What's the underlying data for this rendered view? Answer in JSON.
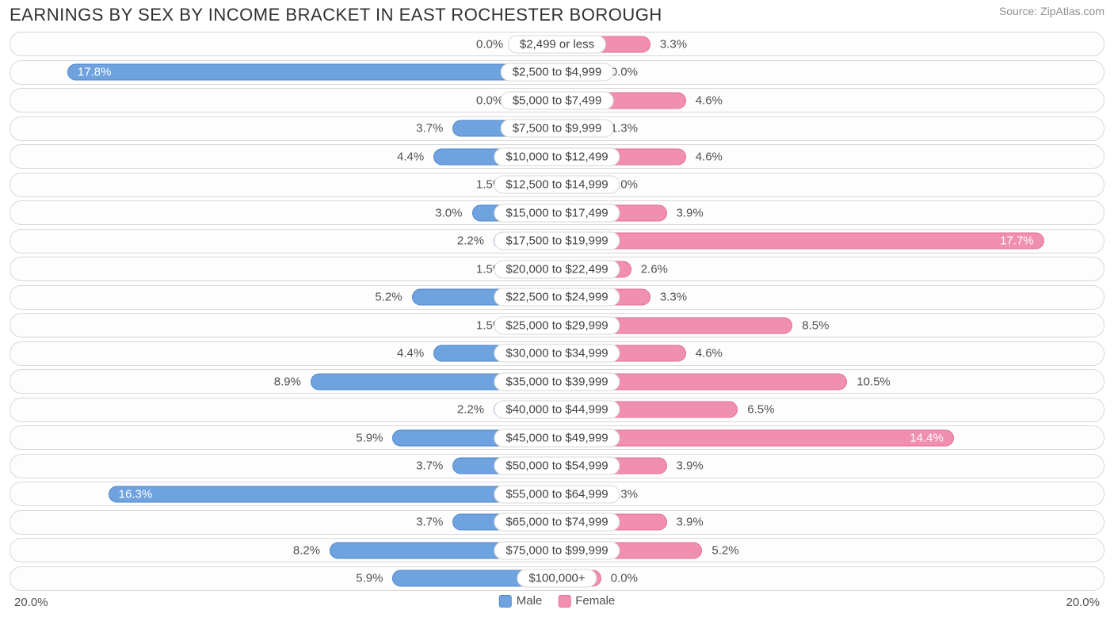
{
  "title": "EARNINGS BY SEX BY INCOME BRACKET IN EAST ROCHESTER BOROUGH",
  "source": "Source: ZipAtlas.com",
  "chart": {
    "type": "diverging-bar",
    "axis_max_percent": 20.0,
    "axis_label_left": "20.0%",
    "axis_label_right": "20.0%",
    "min_bar_percent": 1.5,
    "inside_label_threshold": 13.0,
    "colors": {
      "male_fill": "#6fa3e0",
      "male_border": "#4f86cc",
      "female_fill": "#f08fb0",
      "female_border": "#e46f99",
      "row_border": "#d8d8d8",
      "row_bg": "#fdfdfd",
      "text": "#505050",
      "inside_text": "#ffffff",
      "title_text": "#303030",
      "source_text": "#909090"
    },
    "legend": [
      {
        "label": "Male",
        "color": "#6fa3e0",
        "border": "#4f86cc"
      },
      {
        "label": "Female",
        "color": "#f08fb0",
        "border": "#e46f99"
      }
    ],
    "rows": [
      {
        "category": "$2,499 or less",
        "male": 0.0,
        "female": 3.3
      },
      {
        "category": "$2,500 to $4,999",
        "male": 17.8,
        "female": 0.0
      },
      {
        "category": "$5,000 to $7,499",
        "male": 0.0,
        "female": 4.6
      },
      {
        "category": "$7,500 to $9,999",
        "male": 3.7,
        "female": 1.3
      },
      {
        "category": "$10,000 to $12,499",
        "male": 4.4,
        "female": 4.6
      },
      {
        "category": "$12,500 to $14,999",
        "male": 1.5,
        "female": 0.0
      },
      {
        "category": "$15,000 to $17,499",
        "male": 3.0,
        "female": 3.9
      },
      {
        "category": "$17,500 to $19,999",
        "male": 2.2,
        "female": 17.7
      },
      {
        "category": "$20,000 to $22,499",
        "male": 1.5,
        "female": 2.6
      },
      {
        "category": "$22,500 to $24,999",
        "male": 5.2,
        "female": 3.3
      },
      {
        "category": "$25,000 to $29,999",
        "male": 1.5,
        "female": 8.5
      },
      {
        "category": "$30,000 to $34,999",
        "male": 4.4,
        "female": 4.6
      },
      {
        "category": "$35,000 to $39,999",
        "male": 8.9,
        "female": 10.5
      },
      {
        "category": "$40,000 to $44,999",
        "male": 2.2,
        "female": 6.5
      },
      {
        "category": "$45,000 to $49,999",
        "male": 5.9,
        "female": 14.4
      },
      {
        "category": "$50,000 to $54,999",
        "male": 3.7,
        "female": 3.9
      },
      {
        "category": "$55,000 to $64,999",
        "male": 16.3,
        "female": 1.3
      },
      {
        "category": "$65,000 to $74,999",
        "male": 3.7,
        "female": 3.9
      },
      {
        "category": "$75,000 to $99,999",
        "male": 8.2,
        "female": 5.2
      },
      {
        "category": "$100,000+",
        "male": 5.9,
        "female": 0.0
      }
    ]
  }
}
